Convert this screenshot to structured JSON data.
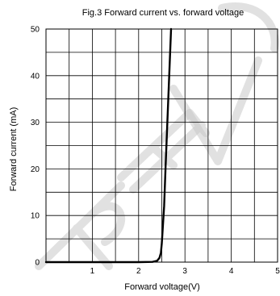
{
  "chart_data": {
    "type": "line",
    "title": "Fig.3 Forward current vs. forward voltage",
    "xlabel": "Forward voltage(V)",
    "ylabel": "Forward current (mA)",
    "xlim": [
      0,
      5
    ],
    "ylim": [
      0,
      50
    ],
    "x_ticks": [
      1,
      2,
      3,
      4,
      5
    ],
    "y_ticks": [
      0,
      10,
      20,
      30,
      40,
      50
    ],
    "x_minor_step": 0.5,
    "y_minor_step": 5,
    "grid": true,
    "series": [
      {
        "color": "#000000",
        "points": [
          [
            0,
            0
          ],
          [
            1.0,
            0
          ],
          [
            2.0,
            0
          ],
          [
            2.3,
            0.05
          ],
          [
            2.4,
            0.3
          ],
          [
            2.45,
            0.9
          ],
          [
            2.48,
            2
          ],
          [
            2.5,
            4
          ],
          [
            2.52,
            7
          ],
          [
            2.55,
            12
          ],
          [
            2.58,
            20
          ],
          [
            2.62,
            30
          ],
          [
            2.66,
            40
          ],
          [
            2.7,
            50
          ]
        ]
      }
    ]
  },
  "watermark": {
    "description": "light gray diagonal watermark letters",
    "text": "REV"
  }
}
